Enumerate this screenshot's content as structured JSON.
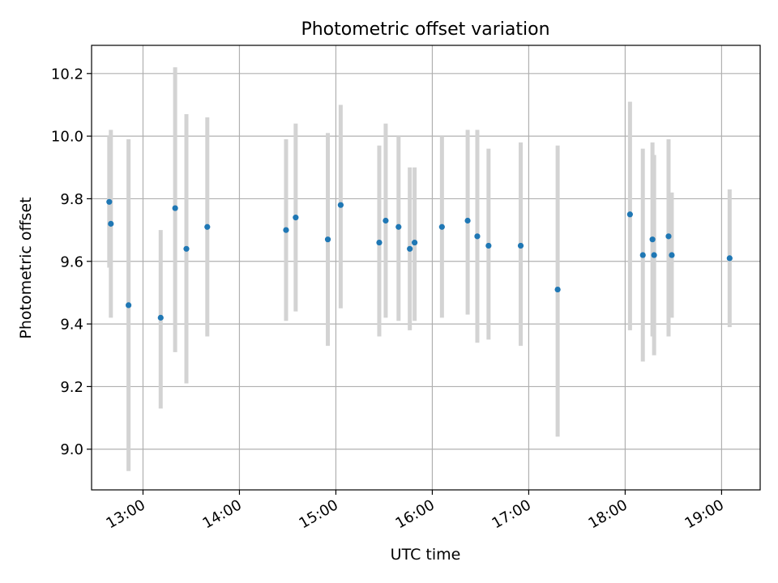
{
  "chart_data": {
    "type": "scatter",
    "title": "Photometric offset variation",
    "xlabel": "UTC time",
    "ylabel": "Photometric offset",
    "xlim": [
      "12:28",
      "19:24"
    ],
    "ylim": [
      8.87,
      10.29
    ],
    "grid": true,
    "x_ticks": [
      "13:00",
      "14:00",
      "15:00",
      "16:00",
      "17:00",
      "18:00",
      "19:00"
    ],
    "y_ticks": [
      "9.0",
      "9.2",
      "9.4",
      "9.6",
      "9.8",
      "10.0",
      "10.2"
    ],
    "colors": {
      "point": "#1f77b4",
      "errorbar": "#d3d3d3",
      "grid": "#b0b0b0"
    },
    "series": [
      {
        "points": [
          {
            "t": "12:39",
            "y": 9.79,
            "lo": 9.58,
            "hi": 10.0
          },
          {
            "t": "12:40",
            "y": 9.72,
            "lo": 9.42,
            "hi": 10.02
          },
          {
            "t": "12:51",
            "y": 9.46,
            "lo": 8.93,
            "hi": 9.99
          },
          {
            "t": "13:11",
            "y": 9.42,
            "lo": 9.13,
            "hi": 9.7
          },
          {
            "t": "13:20",
            "y": 9.77,
            "lo": 9.31,
            "hi": 10.22
          },
          {
            "t": "13:27",
            "y": 9.64,
            "lo": 9.21,
            "hi": 10.07
          },
          {
            "t": "13:40",
            "y": 9.71,
            "lo": 9.36,
            "hi": 10.06
          },
          {
            "t": "14:29",
            "y": 9.7,
            "lo": 9.41,
            "hi": 9.99
          },
          {
            "t": "14:35",
            "y": 9.74,
            "lo": 9.44,
            "hi": 10.04
          },
          {
            "t": "14:55",
            "y": 9.67,
            "lo": 9.33,
            "hi": 10.01
          },
          {
            "t": "15:03",
            "y": 9.78,
            "lo": 9.45,
            "hi": 10.1
          },
          {
            "t": "15:27",
            "y": 9.66,
            "lo": 9.36,
            "hi": 9.97
          },
          {
            "t": "15:31",
            "y": 9.73,
            "lo": 9.42,
            "hi": 10.04
          },
          {
            "t": "15:39",
            "y": 9.71,
            "lo": 9.41,
            "hi": 10.0
          },
          {
            "t": "15:46",
            "y": 9.64,
            "lo": 9.38,
            "hi": 9.9
          },
          {
            "t": "15:49",
            "y": 9.66,
            "lo": 9.41,
            "hi": 9.9
          },
          {
            "t": "16:06",
            "y": 9.71,
            "lo": 9.42,
            "hi": 10.0
          },
          {
            "t": "16:22",
            "y": 9.73,
            "lo": 9.43,
            "hi": 10.02
          },
          {
            "t": "16:28",
            "y": 9.68,
            "lo": 9.34,
            "hi": 10.02
          },
          {
            "t": "16:35",
            "y": 9.65,
            "lo": 9.35,
            "hi": 9.96
          },
          {
            "t": "16:55",
            "y": 9.65,
            "lo": 9.33,
            "hi": 9.98
          },
          {
            "t": "17:18",
            "y": 9.51,
            "lo": 9.04,
            "hi": 9.97
          },
          {
            "t": "18:03",
            "y": 9.75,
            "lo": 9.38,
            "hi": 10.11
          },
          {
            "t": "18:11",
            "y": 9.62,
            "lo": 9.28,
            "hi": 9.96
          },
          {
            "t": "18:17",
            "y": 9.67,
            "lo": 9.36,
            "hi": 9.98
          },
          {
            "t": "18:18",
            "y": 9.62,
            "lo": 9.3,
            "hi": 9.94
          },
          {
            "t": "18:27",
            "y": 9.68,
            "lo": 9.36,
            "hi": 9.99
          },
          {
            "t": "18:29",
            "y": 9.62,
            "lo": 9.42,
            "hi": 9.82
          },
          {
            "t": "19:05",
            "y": 9.61,
            "lo": 9.39,
            "hi": 9.83
          }
        ]
      }
    ]
  }
}
